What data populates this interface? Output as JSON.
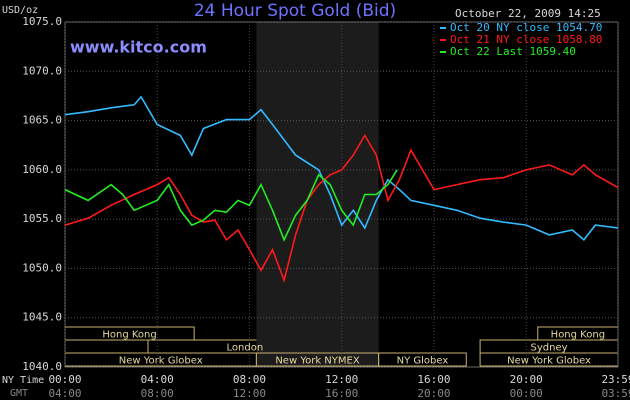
{
  "chart_data": {
    "type": "line",
    "title": "24 Hour Spot Gold (Bid)",
    "date": "October 22, 2009 14:25",
    "source": "www.kitco.com",
    "ylabel": "USD/oz",
    "x_row_labels": [
      "NY Time",
      "GMT"
    ],
    "ylim": [
      1040,
      1075
    ],
    "yticks": [
      {
        "value": 1040,
        "label": "1040.0"
      },
      {
        "value": 1045,
        "label": "1045.0"
      },
      {
        "value": 1050,
        "label": "1050.0"
      },
      {
        "value": 1055,
        "label": "1055.0"
      },
      {
        "value": 1060,
        "label": "1060.0"
      },
      {
        "value": 1065,
        "label": "1065.0"
      },
      {
        "value": 1070,
        "label": "1070.0"
      },
      {
        "value": 1075,
        "label": "1075.0"
      }
    ],
    "xlim": [
      0,
      23.98
    ],
    "xticks": [
      {
        "value": 0,
        "label": "00:00"
      },
      {
        "value": 4,
        "label": "04:00"
      },
      {
        "value": 8,
        "label": "08:00"
      },
      {
        "value": 12,
        "label": "12:00"
      },
      {
        "value": 16,
        "label": "16:00"
      },
      {
        "value": 20,
        "label": "20:00"
      },
      {
        "value": 23.98,
        "label": "23:59"
      }
    ],
    "gmt_tick_labels": [
      "04:00",
      "08:00",
      "12:00",
      "16:00",
      "20:00",
      "00:00",
      "03:59"
    ],
    "grid": true,
    "legend": "upper right",
    "session_rows": [
      [
        {
          "label": "Hong Kong",
          "start": 0,
          "end": 5.6
        },
        {
          "label": "Hong Kong",
          "start": 20.5,
          "end": 23.98
        }
      ],
      [
        {
          "label": "London",
          "start": 3.6,
          "end": 12
        },
        {
          "label": "Sydney",
          "start": 18,
          "end": 23.98
        }
      ],
      [
        {
          "label": "New York Globex",
          "start": 0,
          "end": 8.3
        },
        {
          "label": "New York NYMEX",
          "start": 8.3,
          "end": 13.6,
          "highlight": true
        },
        {
          "label": "NY Globex",
          "start": 13.6,
          "end": 17.4
        },
        {
          "label": "New York Globex",
          "start": 18,
          "end": 23.98
        }
      ]
    ],
    "series": [
      {
        "name": "Oct 20 NY close 1054.70",
        "color": "#33bbff",
        "x": [
          0,
          1,
          2,
          3,
          3.3,
          4,
          5,
          5.5,
          6,
          7,
          8,
          8.5,
          9,
          10,
          11,
          11.5,
          12,
          12.5,
          13,
          13.5,
          14,
          14.5,
          15,
          16,
          17,
          18,
          19,
          20,
          21,
          22,
          22.5,
          23,
          23.98
        ],
        "values": [
          1065.6,
          1065.9,
          1066.3,
          1066.6,
          1067.4,
          1064.6,
          1063.5,
          1061.5,
          1064.2,
          1065.1,
          1065.1,
          1066.1,
          1064.6,
          1061.5,
          1060.0,
          1057.5,
          1054.4,
          1055.9,
          1054.1,
          1056.9,
          1059.0,
          1058.0,
          1056.9,
          1056.4,
          1055.9,
          1055.1,
          1054.7,
          1054.4,
          1053.4,
          1053.9,
          1052.9,
          1054.4,
          1054.1
        ]
      },
      {
        "name": "Oct 21 NY close 1058.80",
        "color": "#ff1a1a",
        "x": [
          0,
          1,
          2,
          3,
          4,
          4.5,
          5,
          5.5,
          6,
          6.5,
          7,
          7.5,
          8,
          8.5,
          9,
          9.5,
          10,
          10.5,
          11,
          11.5,
          12,
          12.5,
          13,
          13.5,
          14,
          14.5,
          15,
          16,
          17,
          18,
          19,
          20,
          21,
          22,
          22.5,
          23,
          23.98
        ],
        "values": [
          1054.4,
          1055.1,
          1056.4,
          1057.5,
          1058.5,
          1059.2,
          1057.5,
          1055.4,
          1054.7,
          1054.9,
          1052.9,
          1053.9,
          1051.9,
          1049.8,
          1051.9,
          1048.8,
          1053.4,
          1056.9,
          1058.5,
          1059.5,
          1060.0,
          1061.5,
          1063.5,
          1061.5,
          1056.9,
          1059.0,
          1062.0,
          1058.0,
          1058.5,
          1059.0,
          1059.2,
          1060.0,
          1060.5,
          1059.5,
          1060.5,
          1059.5,
          1058.2
        ]
      },
      {
        "name": "Oct 22 Last 1059.40",
        "color": "#22ee22",
        "x": [
          0,
          1,
          2,
          2.5,
          3,
          4,
          4.5,
          5,
          5.5,
          6,
          6.5,
          7,
          7.5,
          8,
          8.5,
          9,
          9.5,
          10,
          10.5,
          11,
          11.5,
          12,
          12.5,
          13,
          13.5,
          14,
          14.4
        ],
        "values": [
          1058.0,
          1056.9,
          1058.5,
          1057.5,
          1055.9,
          1056.9,
          1058.5,
          1055.9,
          1054.4,
          1054.9,
          1055.9,
          1055.7,
          1056.9,
          1056.4,
          1058.5,
          1055.9,
          1052.9,
          1055.4,
          1056.9,
          1059.5,
          1058.5,
          1055.9,
          1054.4,
          1057.5,
          1057.5,
          1058.5,
          1060.0
        ]
      }
    ]
  }
}
